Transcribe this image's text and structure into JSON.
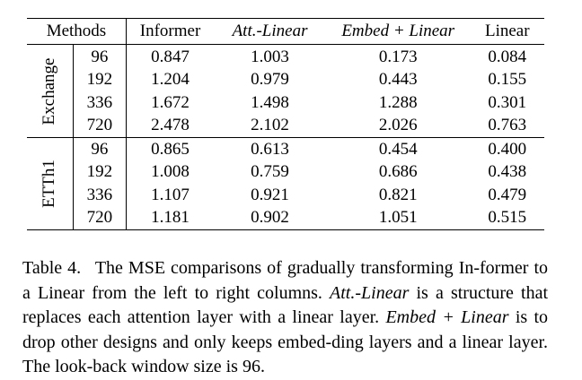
{
  "table": {
    "header": {
      "methods": "Methods",
      "informer": "Informer",
      "att_linear": "Att.-Linear",
      "embed_linear": "Embed + Linear",
      "linear": "Linear"
    },
    "groups": [
      {
        "dataset": "Exchange",
        "rows": [
          {
            "len": "96",
            "informer": "0.847",
            "att_linear": "1.003",
            "embed_linear": "0.173",
            "linear": "0.084"
          },
          {
            "len": "192",
            "informer": "1.204",
            "att_linear": "0.979",
            "embed_linear": "0.443",
            "linear": "0.155"
          },
          {
            "len": "336",
            "informer": "1.672",
            "att_linear": "1.498",
            "embed_linear": "1.288",
            "linear": "0.301"
          },
          {
            "len": "720",
            "informer": "2.478",
            "att_linear": "2.102",
            "embed_linear": "2.026",
            "linear": "0.763"
          }
        ]
      },
      {
        "dataset": "ETTh1",
        "rows": [
          {
            "len": "96",
            "informer": "0.865",
            "att_linear": "0.613",
            "embed_linear": "0.454",
            "linear": "0.400"
          },
          {
            "len": "192",
            "informer": "1.008",
            "att_linear": "0.759",
            "embed_linear": "0.686",
            "linear": "0.438"
          },
          {
            "len": "336",
            "informer": "1.107",
            "att_linear": "0.921",
            "embed_linear": "0.821",
            "linear": "0.479"
          },
          {
            "len": "720",
            "informer": "1.181",
            "att_linear": "0.902",
            "embed_linear": "1.051",
            "linear": "0.515"
          }
        ]
      }
    ]
  },
  "caption": {
    "label": "Table 4.",
    "text_1": "The MSE comparisons of gradually transforming In-former to a Linear from the left to right columns.",
    "term_1": "Att.-Linear",
    "text_2": "is a structure that replaces each attention layer with a linear layer.",
    "term_2": "Embed + Linear",
    "text_3": "is to drop other designs and only keeps embed-ding layers and a linear layer. The look-back window size is 96."
  }
}
